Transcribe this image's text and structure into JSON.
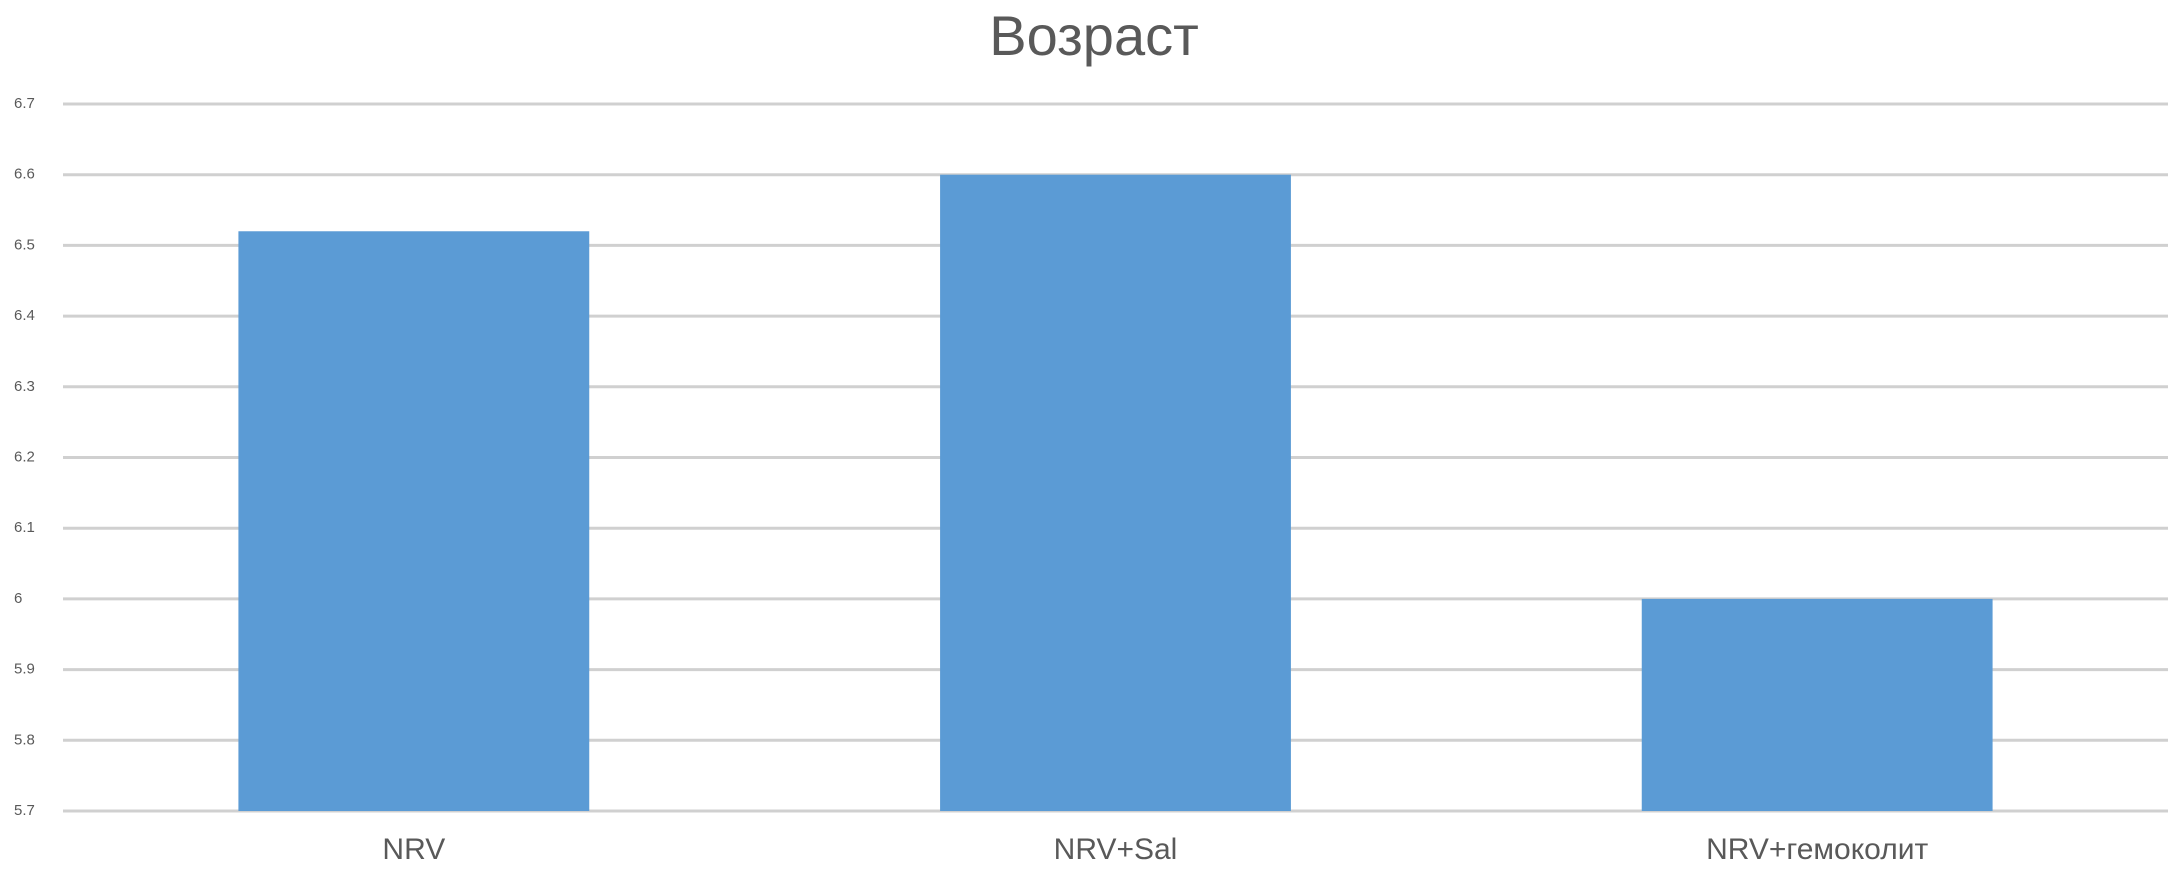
{
  "chart_data": {
    "type": "bar",
    "title": "Возраст",
    "categories": [
      "NRV",
      "NRV+Sal",
      "NRV+гемоколит"
    ],
    "values": [
      6.52,
      6.6,
      6.0
    ],
    "color": "#5b9bd5",
    "ylim": [
      5.7,
      6.7
    ],
    "yticks": [
      5.7,
      5.8,
      5.9,
      6,
      6.1,
      6.2,
      6.3,
      6.4,
      6.5,
      6.6,
      6.7
    ],
    "grid": true
  }
}
